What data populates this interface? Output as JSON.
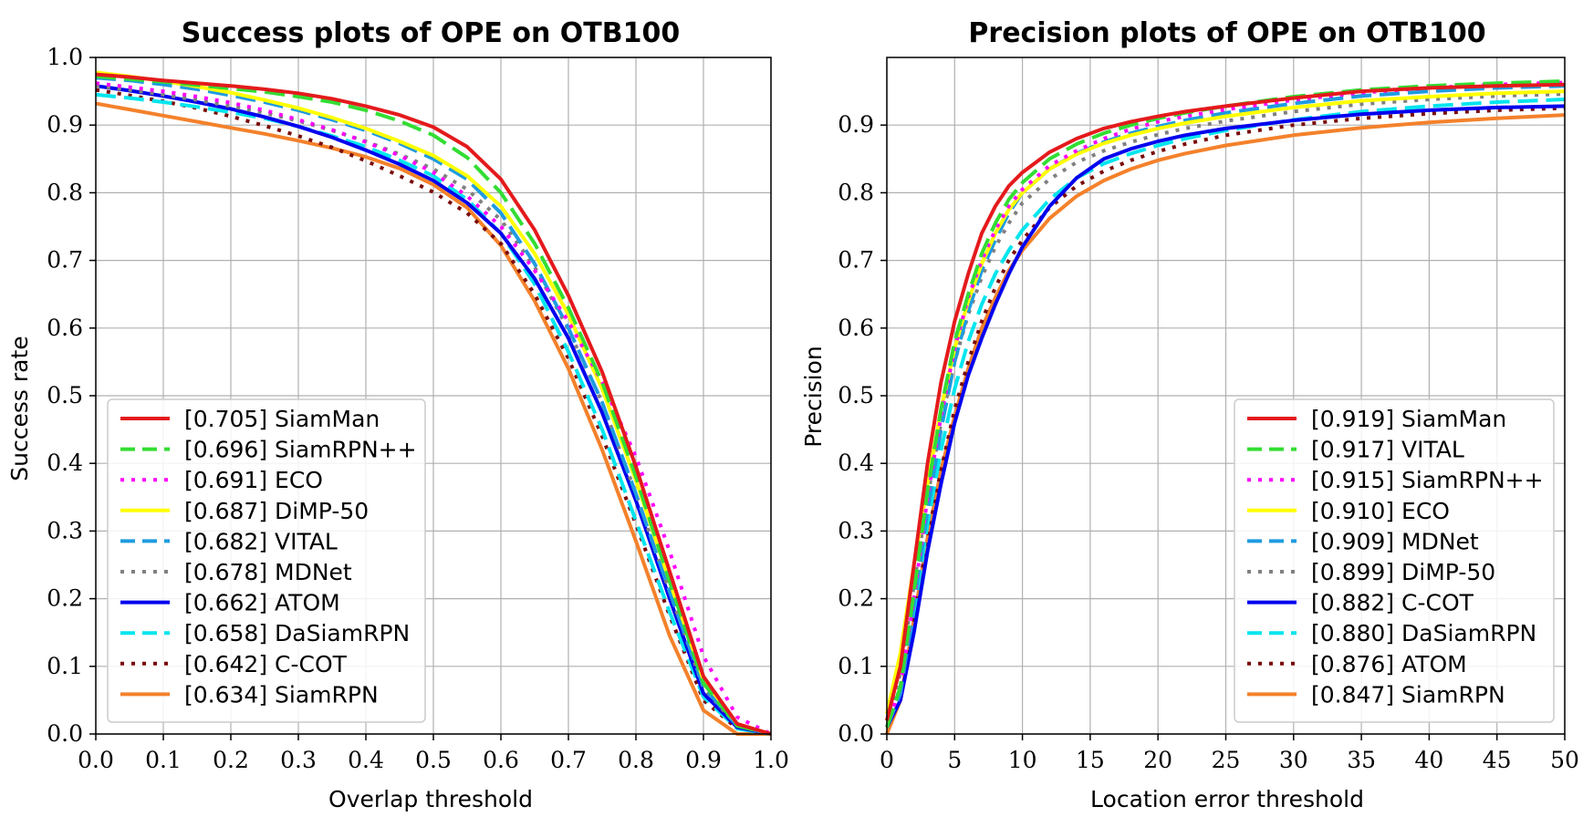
{
  "chart_data": [
    {
      "type": "line",
      "title": "Success plots of OPE on OTB100",
      "xlabel": "Overlap threshold",
      "ylabel": "Success rate",
      "xlim": [
        0,
        1
      ],
      "ylim": [
        0,
        1
      ],
      "grid": true,
      "legend_position": "bottom-left",
      "x_ticks": [
        "0.0",
        "0.1",
        "0.2",
        "0.3",
        "0.4",
        "0.5",
        "0.6",
        "0.7",
        "0.8",
        "0.9",
        "1.0"
      ],
      "y_ticks": [
        "0.0",
        "0.1",
        "0.2",
        "0.3",
        "0.4",
        "0.5",
        "0.6",
        "0.7",
        "0.8",
        "0.9",
        "1.0"
      ],
      "x": [
        0,
        0.05,
        0.1,
        0.15,
        0.2,
        0.25,
        0.3,
        0.35,
        0.4,
        0.45,
        0.5,
        0.55,
        0.6,
        0.65,
        0.7,
        0.75,
        0.8,
        0.85,
        0.9,
        0.95,
        1.0
      ],
      "series": [
        {
          "name": "[0.705] SiamMan",
          "color": "#e41a1c",
          "style": "solid",
          "values": [
            0.975,
            0.971,
            0.966,
            0.962,
            0.958,
            0.953,
            0.947,
            0.939,
            0.928,
            0.915,
            0.897,
            0.868,
            0.82,
            0.745,
            0.648,
            0.535,
            0.395,
            0.24,
            0.085,
            0.015,
            0.0
          ]
        },
        {
          "name": "[0.696] SiamRPN++",
          "color": "#33dd33",
          "style": "dashed",
          "values": [
            0.972,
            0.968,
            0.964,
            0.959,
            0.954,
            0.949,
            0.942,
            0.934,
            0.922,
            0.906,
            0.885,
            0.852,
            0.8,
            0.725,
            0.63,
            0.52,
            0.38,
            0.225,
            0.075,
            0.012,
            0.0
          ]
        },
        {
          "name": "[0.691] ECO",
          "color": "#ff00ff",
          "style": "dotted",
          "values": [
            0.962,
            0.956,
            0.95,
            0.942,
            0.933,
            0.922,
            0.908,
            0.893,
            0.875,
            0.855,
            0.83,
            0.795,
            0.75,
            0.685,
            0.61,
            0.52,
            0.41,
            0.27,
            0.115,
            0.025,
            0.0
          ]
        },
        {
          "name": "[0.687] DiMP-50",
          "color": "#ffff00",
          "style": "solid",
          "values": [
            0.978,
            0.972,
            0.965,
            0.957,
            0.948,
            0.937,
            0.925,
            0.911,
            0.895,
            0.876,
            0.855,
            0.825,
            0.78,
            0.71,
            0.62,
            0.51,
            0.375,
            0.225,
            0.08,
            0.015,
            0.0
          ]
        },
        {
          "name": "[0.682] VITAL",
          "color": "#1f9be0",
          "style": "dashed",
          "values": [
            0.97,
            0.966,
            0.96,
            0.953,
            0.944,
            0.934,
            0.922,
            0.908,
            0.892,
            0.873,
            0.85,
            0.82,
            0.77,
            0.695,
            0.6,
            0.49,
            0.355,
            0.21,
            0.07,
            0.012,
            0.0
          ]
        },
        {
          "name": "[0.678] MDNet",
          "color": "#808080",
          "style": "dotted",
          "values": [
            0.958,
            0.952,
            0.945,
            0.937,
            0.928,
            0.918,
            0.906,
            0.892,
            0.876,
            0.857,
            0.835,
            0.805,
            0.76,
            0.69,
            0.598,
            0.49,
            0.355,
            0.21,
            0.068,
            0.012,
            0.0
          ]
        },
        {
          "name": "[0.662] ATOM",
          "color": "#0000ee",
          "style": "solid",
          "values": [
            0.958,
            0.951,
            0.943,
            0.934,
            0.924,
            0.912,
            0.898,
            0.882,
            0.863,
            0.842,
            0.818,
            0.785,
            0.74,
            0.673,
            0.585,
            0.475,
            0.345,
            0.2,
            0.06,
            0.01,
            0.0
          ]
        },
        {
          "name": "[0.658] DaSiamRPN",
          "color": "#00e5ee",
          "style": "dashed",
          "values": [
            0.945,
            0.94,
            0.934,
            0.927,
            0.919,
            0.91,
            0.898,
            0.884,
            0.868,
            0.848,
            0.825,
            0.79,
            0.74,
            0.665,
            0.565,
            0.45,
            0.315,
            0.18,
            0.055,
            0.008,
            0.0
          ]
        },
        {
          "name": "[0.642] C-COT",
          "color": "#7a0a0a",
          "style": "dotted",
          "values": [
            0.952,
            0.944,
            0.935,
            0.925,
            0.913,
            0.899,
            0.884,
            0.867,
            0.847,
            0.825,
            0.801,
            0.77,
            0.725,
            0.65,
            0.555,
            0.44,
            0.31,
            0.175,
            0.05,
            0.008,
            0.0
          ]
        },
        {
          "name": "[0.634] SiamRPN",
          "color": "#f4812b",
          "style": "solid",
          "values": [
            0.932,
            0.923,
            0.914,
            0.905,
            0.896,
            0.887,
            0.877,
            0.866,
            0.853,
            0.836,
            0.812,
            0.778,
            0.722,
            0.64,
            0.54,
            0.42,
            0.285,
            0.145,
            0.035,
            0.0,
            0.0
          ]
        }
      ]
    },
    {
      "type": "line",
      "title": "Precision plots of OPE on OTB100",
      "xlabel": "Location error threshold",
      "ylabel": "Precision",
      "xlim": [
        0,
        50
      ],
      "ylim": [
        0,
        1
      ],
      "grid": true,
      "legend_position": "bottom-right",
      "x_ticks": [
        "0",
        "5",
        "10",
        "15",
        "20",
        "25",
        "30",
        "35",
        "40",
        "45",
        "50"
      ],
      "y_ticks": [
        "0.0",
        "0.1",
        "0.2",
        "0.3",
        "0.4",
        "0.5",
        "0.6",
        "0.7",
        "0.8",
        "0.9"
      ],
      "x": [
        0,
        1,
        2,
        3,
        4,
        5,
        6,
        7,
        8,
        9,
        10,
        12,
        14,
        16,
        18,
        20,
        22,
        25,
        30,
        35,
        40,
        45,
        50
      ],
      "series": [
        {
          "name": "[0.919] SiamMan",
          "color": "#e41a1c",
          "style": "solid",
          "values": [
            0.02,
            0.1,
            0.25,
            0.4,
            0.52,
            0.61,
            0.68,
            0.74,
            0.78,
            0.81,
            0.83,
            0.86,
            0.88,
            0.895,
            0.905,
            0.913,
            0.92,
            0.928,
            0.94,
            0.95,
            0.955,
            0.958,
            0.96
          ]
        },
        {
          "name": "[0.917] VITAL",
          "color": "#33dd33",
          "style": "dashed",
          "values": [
            0.01,
            0.07,
            0.21,
            0.36,
            0.48,
            0.58,
            0.65,
            0.71,
            0.755,
            0.79,
            0.815,
            0.85,
            0.872,
            0.888,
            0.9,
            0.91,
            0.918,
            0.928,
            0.942,
            0.952,
            0.958,
            0.962,
            0.965
          ]
        },
        {
          "name": "[0.915] SiamRPN++",
          "color": "#ff00ff",
          "style": "dotted",
          "values": [
            0.01,
            0.07,
            0.2,
            0.35,
            0.47,
            0.57,
            0.645,
            0.7,
            0.745,
            0.78,
            0.805,
            0.84,
            0.862,
            0.88,
            0.894,
            0.905,
            0.913,
            0.923,
            0.937,
            0.948,
            0.955,
            0.96,
            0.963
          ]
        },
        {
          "name": "[0.910] ECO",
          "color": "#ffff00",
          "style": "solid",
          "values": [
            0.03,
            0.12,
            0.25,
            0.37,
            0.48,
            0.57,
            0.64,
            0.695,
            0.74,
            0.775,
            0.8,
            0.835,
            0.857,
            0.873,
            0.885,
            0.895,
            0.903,
            0.913,
            0.926,
            0.936,
            0.942,
            0.947,
            0.95
          ]
        },
        {
          "name": "[0.909] MDNet",
          "color": "#1f9be0",
          "style": "dashed",
          "values": [
            0.01,
            0.06,
            0.19,
            0.33,
            0.45,
            0.55,
            0.625,
            0.685,
            0.73,
            0.77,
            0.8,
            0.835,
            0.858,
            0.875,
            0.888,
            0.898,
            0.907,
            0.918,
            0.932,
            0.943,
            0.95,
            0.955,
            0.958
          ]
        },
        {
          "name": "[0.899] DiMP-50",
          "color": "#808080",
          "style": "dotted",
          "values": [
            0.02,
            0.09,
            0.22,
            0.35,
            0.46,
            0.55,
            0.62,
            0.675,
            0.72,
            0.755,
            0.785,
            0.82,
            0.845,
            0.862,
            0.875,
            0.886,
            0.895,
            0.906,
            0.92,
            0.931,
            0.938,
            0.943,
            0.946
          ]
        },
        {
          "name": "[0.882] C-COT",
          "color": "#0000ee",
          "style": "solid",
          "values": [
            0.01,
            0.05,
            0.15,
            0.27,
            0.37,
            0.46,
            0.53,
            0.585,
            0.635,
            0.68,
            0.72,
            0.78,
            0.822,
            0.85,
            0.865,
            0.876,
            0.885,
            0.895,
            0.907,
            0.916,
            0.922,
            0.926,
            0.928
          ]
        },
        {
          "name": "[0.880] DaSiamRPN",
          "color": "#00e5ee",
          "style": "dashed",
          "values": [
            0.01,
            0.06,
            0.18,
            0.31,
            0.42,
            0.51,
            0.58,
            0.635,
            0.68,
            0.715,
            0.745,
            0.79,
            0.822,
            0.843,
            0.858,
            0.87,
            0.88,
            0.892,
            0.908,
            0.92,
            0.928,
            0.934,
            0.938
          ]
        },
        {
          "name": "[0.876] ATOM",
          "color": "#7a0a0a",
          "style": "dotted",
          "values": [
            0.01,
            0.06,
            0.17,
            0.29,
            0.39,
            0.48,
            0.55,
            0.61,
            0.66,
            0.7,
            0.73,
            0.778,
            0.81,
            0.832,
            0.848,
            0.861,
            0.872,
            0.885,
            0.9,
            0.91,
            0.917,
            0.922,
            0.925
          ]
        },
        {
          "name": "[0.847] SiamRPN",
          "color": "#f4812b",
          "style": "solid",
          "values": [
            0.0,
            0.05,
            0.17,
            0.29,
            0.39,
            0.47,
            0.54,
            0.6,
            0.645,
            0.685,
            0.715,
            0.762,
            0.795,
            0.818,
            0.835,
            0.848,
            0.858,
            0.87,
            0.885,
            0.896,
            0.904,
            0.91,
            0.915
          ]
        }
      ]
    }
  ]
}
